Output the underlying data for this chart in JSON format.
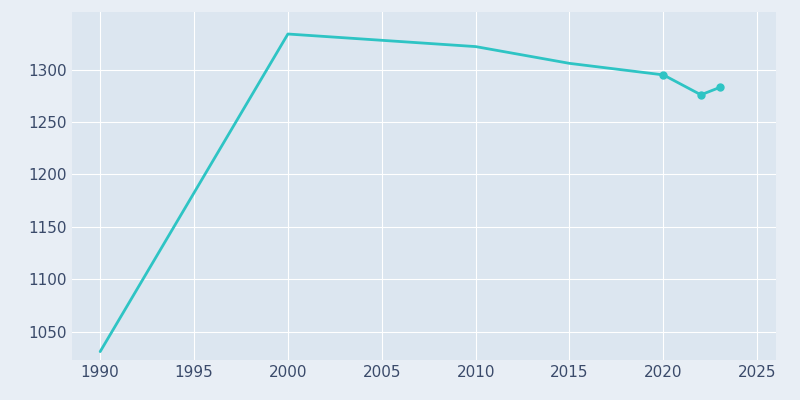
{
  "years": [
    1990,
    2000,
    2010,
    2015,
    2020,
    2022,
    2023
  ],
  "population": [
    1031,
    1334,
    1322,
    1306,
    1295,
    1276,
    1283
  ],
  "marker_years": [
    2020,
    2022,
    2023
  ],
  "marker_population": [
    1295,
    1276,
    1283
  ],
  "line_color": "#2EC4C4",
  "marker_color": "#2EC4C4",
  "fig_bg_color": "#E8EEF5",
  "plot_bg_color": "#DCE6F0",
  "grid_color": "#FFFFFF",
  "tick_color": "#3A4A6A",
  "xlim": [
    1988.5,
    2026
  ],
  "ylim": [
    1023,
    1355
  ],
  "yticks": [
    1050,
    1100,
    1150,
    1200,
    1250,
    1300
  ],
  "xticks": [
    1990,
    1995,
    2000,
    2005,
    2010,
    2015,
    2020,
    2025
  ],
  "line_width": 2.0,
  "marker_size": 5,
  "tick_fontsize": 11
}
